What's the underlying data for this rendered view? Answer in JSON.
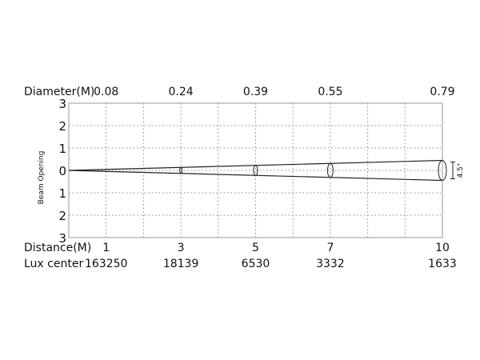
{
  "diagram": {
    "diameter_label": "Diameter(M)",
    "distance_label": "Distance(M)",
    "lux_label": "Lux center",
    "y_axis_label": "Beam Opening",
    "y_ticks": [
      "3",
      "2",
      "1",
      "0",
      "1",
      "2",
      "3"
    ],
    "beam_angle": "4.5°",
    "points": [
      {
        "distance": "1",
        "diameter": "0.08",
        "lux": "163250"
      },
      {
        "distance": "3",
        "diameter": "0.24",
        "lux": "18139"
      },
      {
        "distance": "5",
        "diameter": "0.39",
        "lux": "6530"
      },
      {
        "distance": "7",
        "diameter": "0.55",
        "lux": "3332"
      },
      {
        "distance": "10",
        "diameter": "0.79",
        "lux": "1633"
      }
    ],
    "line_color": "#222222",
    "grid_color": "#888888"
  }
}
